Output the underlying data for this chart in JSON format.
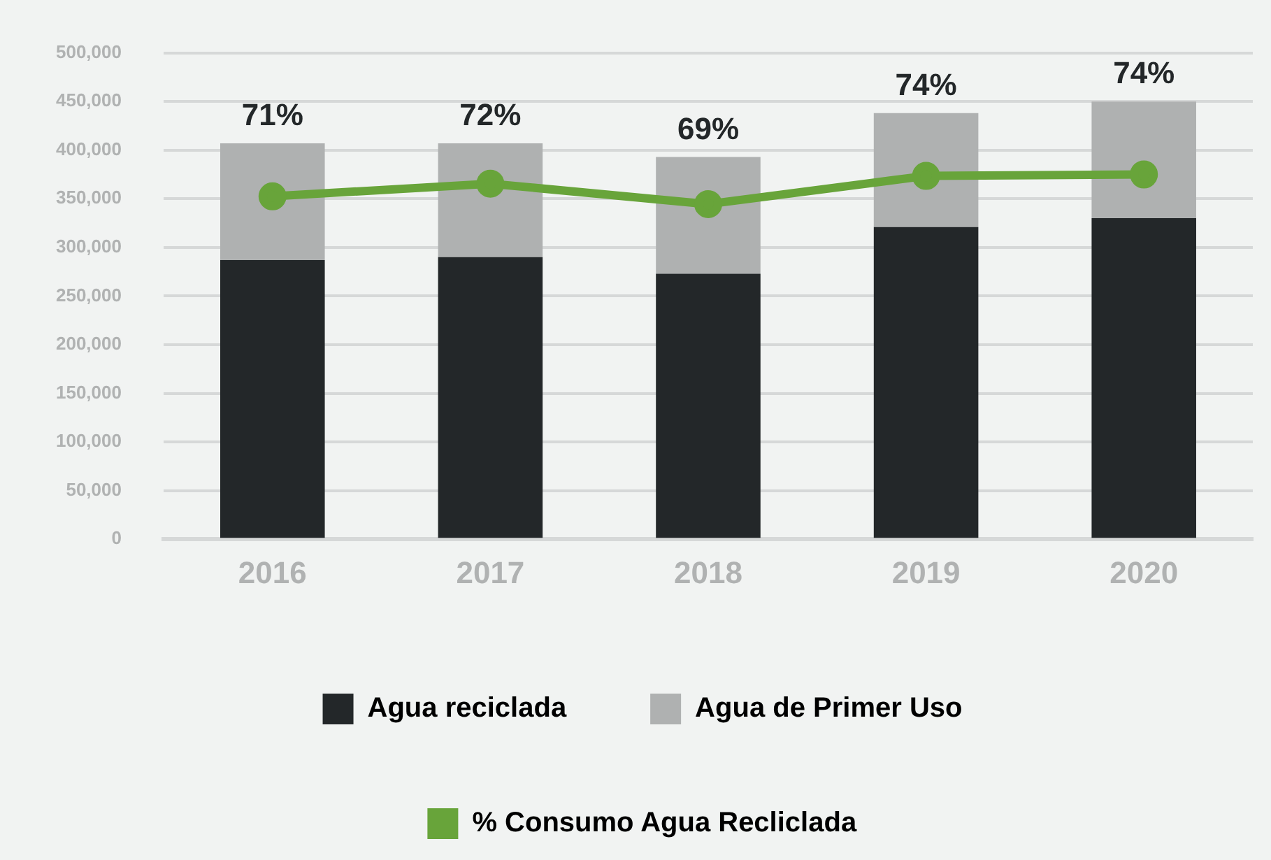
{
  "chart_data": {
    "type": "bar",
    "stacked": true,
    "categories": [
      "2016",
      "2017",
      "2018",
      "2019",
      "2020"
    ],
    "series": [
      {
        "name": "Agua reciclada",
        "color": "#232729",
        "values": [
          287000,
          290000,
          273000,
          321000,
          330000
        ]
      },
      {
        "name": "Agua de Primer Uso",
        "color": "#afb1b1",
        "values": [
          120000,
          117000,
          120000,
          117000,
          120000
        ]
      },
      {
        "name": "% Consumo Agua Recliclada",
        "type": "line",
        "color": "#68a43a",
        "marker": "circle",
        "values": [
          352500,
          365500,
          344500,
          373500,
          375000
        ]
      }
    ],
    "ylim": [
      0,
      500000
    ],
    "yticks": [
      {
        "value": 0,
        "label": "0"
      },
      {
        "value": 50000,
        "label": "50,000"
      },
      {
        "value": 100000,
        "label": "100,000"
      },
      {
        "value": 150000,
        "label": "150,000"
      },
      {
        "value": 200000,
        "label": "200,000"
      },
      {
        "value": 250000,
        "label": "250,000"
      },
      {
        "value": 300000,
        "label": "300,000"
      },
      {
        "value": 350000,
        "label": "350,000"
      },
      {
        "value": 400000,
        "label": "400,000"
      },
      {
        "value": 450000,
        "label": "450,000"
      },
      {
        "value": 500000,
        "label": "500,000"
      }
    ],
    "grid": "y",
    "legend": "bottom",
    "annotations": [
      {
        "text": "71%",
        "x": "2016",
        "y": 407000
      },
      {
        "text": "72%",
        "x": "2017",
        "y": 407000
      },
      {
        "text": "69%",
        "x": "2018",
        "y": 393000
      },
      {
        "text": "74%",
        "x": "2019",
        "y": 438000
      },
      {
        "text": "74%",
        "x": "2020",
        "y": 450000
      }
    ]
  }
}
